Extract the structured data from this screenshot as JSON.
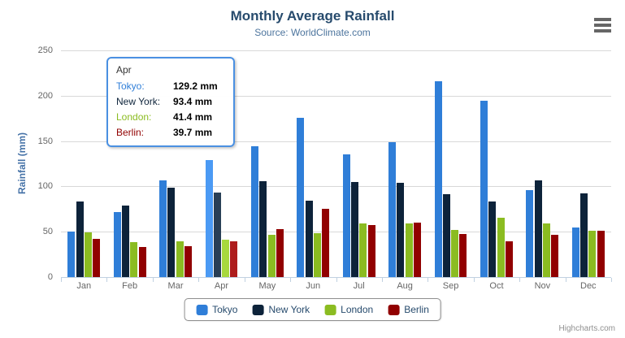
{
  "header": {
    "title": "Monthly Average Rainfall",
    "subtitle": "Source: WorldClimate.com"
  },
  "context_menu": {
    "icon": "hamburger-icon"
  },
  "credits": {
    "label": "Highcharts.com"
  },
  "chart_data": {
    "type": "bar",
    "title": "Monthly Average Rainfall",
    "subtitle": "Source: WorldClimate.com",
    "categories": [
      "Jan",
      "Feb",
      "Mar",
      "Apr",
      "May",
      "Jun",
      "Jul",
      "Aug",
      "Sep",
      "Oct",
      "Nov",
      "Dec"
    ],
    "series": [
      {
        "name": "Tokyo",
        "color": "#2f7ed8",
        "values": [
          49.9,
          71.5,
          106.4,
          129.2,
          144.0,
          176.0,
          135.6,
          148.5,
          216.4,
          194.1,
          95.6,
          54.4
        ]
      },
      {
        "name": "New York",
        "color": "#0d233a",
        "values": [
          83.6,
          78.8,
          98.5,
          93.4,
          106.0,
          84.5,
          105.0,
          104.3,
          91.2,
          83.5,
          106.6,
          92.3
        ]
      },
      {
        "name": "London",
        "color": "#8bbc21",
        "values": [
          48.9,
          38.8,
          39.3,
          41.4,
          47.0,
          48.3,
          59.0,
          59.6,
          52.4,
          65.2,
          59.3,
          51.2
        ]
      },
      {
        "name": "Berlin",
        "color": "#910000",
        "values": [
          42.4,
          33.2,
          34.5,
          39.7,
          52.6,
          75.5,
          57.4,
          60.4,
          47.6,
          39.1,
          46.8,
          51.1
        ]
      }
    ],
    "xlabel": "",
    "ylabel": "Rainfall (mm)",
    "ylim": [
      0,
      250
    ],
    "yticks": [
      0,
      50,
      100,
      150,
      200,
      250
    ],
    "grid": true,
    "legend_position": "bottom",
    "hovered_category": "Apr",
    "unit": "mm"
  },
  "tooltip": {
    "header": "Apr",
    "rows": [
      {
        "label": "Tokyo:",
        "value": "129.2 mm",
        "color": "#2f7ed8"
      },
      {
        "label": "New York:",
        "value": "93.4 mm",
        "color": "#0d233a"
      },
      {
        "label": "London:",
        "value": "41.4 mm",
        "color": "#8bbc21"
      },
      {
        "label": "Berlin:",
        "value": "39.7 mm",
        "color": "#910000"
      }
    ]
  },
  "styles": {
    "title_color": "#274b6d",
    "subtitle_color": "#4d759e",
    "axis_label_color": "#666666",
    "yaxis_title_color": "#4572a7",
    "grid_color": "#d8d8d8",
    "axis_line_color": "#c0d0e0",
    "legend_text_color": "#274b6d",
    "legend_border_color": "#909090",
    "tooltip_border_color": "#4a90e2"
  }
}
